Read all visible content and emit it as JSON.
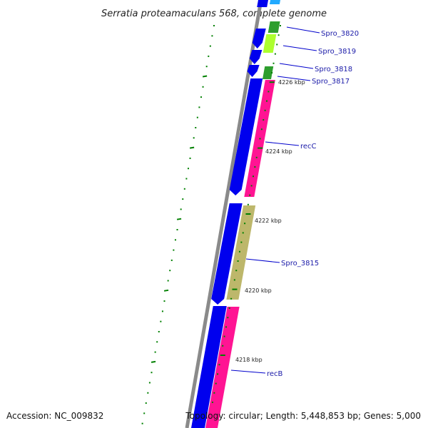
{
  "title": "Serratia proteamaculans 568, complete genome",
  "footer": {
    "accession": "Accession: NC_009832",
    "topology": "Topology: circular; Length: 5,448,853 bp; Genes: 5,000"
  },
  "colors": {
    "background": "#ffffff",
    "backbone": "#8a8a8a",
    "forward_cds": "#0000ee",
    "reverse_cds_pink": "#ff1493",
    "reverse_cds_khaki": "#bdb76b",
    "reverse_cds_lime": "#adff2f",
    "reverse_cds_green": "#2e9e2e",
    "top_cds_cyan": "#22aaff",
    "tick_green": "#008000",
    "label_line": "#0000cc",
    "label_text": "#1a1aa8"
  },
  "kbp_labels": [
    "4226 kbp",
    "4224 kbp",
    "4222 kbp",
    "4220 kbp",
    "4218 kbp"
  ],
  "gene_labels": [
    "Spro_3820",
    "Spro_3819",
    "Spro_3818",
    "Spro_3817",
    "recC",
    "Spro_3815",
    "recB"
  ]
}
